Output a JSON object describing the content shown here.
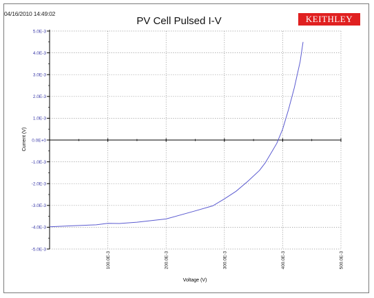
{
  "header": {
    "timestamp": "04/16/2010 14:49:02",
    "title": "PV Cell Pulsed I-V",
    "logo": "KEITHLEY"
  },
  "colors": {
    "logo_bg": "#e02020",
    "series": "#5a5ad0",
    "axis": "#000000",
    "grid": "#8a8a8a",
    "ytick_text": "#3a3aa8"
  },
  "chart_data": {
    "type": "line",
    "title": "PV Cell Pulsed I-V",
    "xlabel": "Voltage (V)",
    "ylabel": "Current (V)",
    "xlim": [
      0,
      0.5
    ],
    "ylim": [
      -0.005,
      0.005
    ],
    "grid": true,
    "x_ticks": [
      {
        "value": 0.1,
        "label": "100.0E-3"
      },
      {
        "value": 0.2,
        "label": "200.0E-3"
      },
      {
        "value": 0.3,
        "label": "300.0E-3"
      },
      {
        "value": 0.4,
        "label": "400.0E-3"
      },
      {
        "value": 0.5,
        "label": "500.0E-3"
      }
    ],
    "y_ticks": [
      {
        "value": 0.005,
        "label": "5.0E-3"
      },
      {
        "value": 0.004,
        "label": "4.0E-3"
      },
      {
        "value": 0.003,
        "label": "3.0E-3"
      },
      {
        "value": 0.002,
        "label": "2.0E-3"
      },
      {
        "value": 0.001,
        "label": "1.0E-3"
      },
      {
        "value": 0.0,
        "label": "0.0E+0"
      },
      {
        "value": -0.001,
        "label": "-1.0E-3"
      },
      {
        "value": -0.002,
        "label": "-2.0E-3"
      },
      {
        "value": -0.003,
        "label": "-3.0E-3"
      },
      {
        "value": -0.004,
        "label": "-4.0E-3"
      },
      {
        "value": -0.005,
        "label": "-5.0E-3"
      }
    ],
    "series": [
      {
        "x": [
          0.0,
          0.04,
          0.08,
          0.1,
          0.12,
          0.15,
          0.2,
          0.25,
          0.28,
          0.3,
          0.32,
          0.34,
          0.36,
          0.37,
          0.38,
          0.39,
          0.4,
          0.41,
          0.42,
          0.43,
          0.435
        ],
        "y": [
          -0.00398,
          -0.00393,
          -0.00389,
          -0.00382,
          -0.00383,
          -0.00377,
          -0.00362,
          -0.00325,
          -0.00302,
          -0.0027,
          -0.00235,
          -0.0019,
          -0.0014,
          -0.00105,
          -0.0006,
          -0.00015,
          0.0005,
          0.0014,
          0.0024,
          0.0036,
          0.0045
        ]
      }
    ]
  }
}
